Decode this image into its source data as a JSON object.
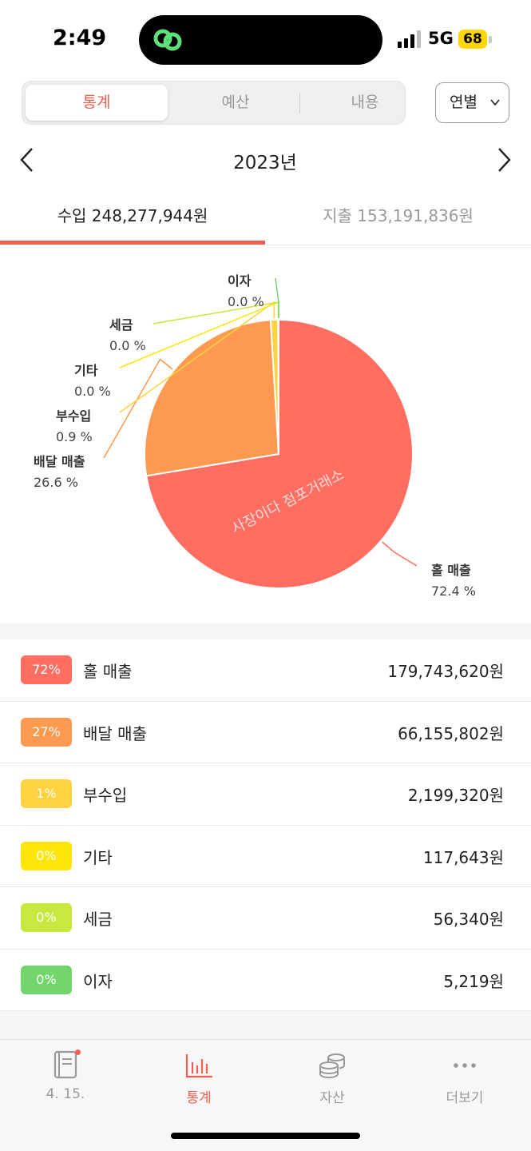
{
  "status_bar": {
    "time": "2:49",
    "network": "5G",
    "battery": "68"
  },
  "segment": {
    "tabs": [
      "통계",
      "예산",
      "내용"
    ],
    "active_index": 0,
    "dropdown_value": "연별"
  },
  "year_nav": {
    "label": "2023년"
  },
  "summary_tabs": {
    "income": "수입 248,277,944원",
    "expense": "지출 153,191,836원",
    "active": "income"
  },
  "colors": {
    "accent": "#f0604e",
    "hall": "#ff6e61",
    "delivery": "#fe9a4f",
    "side": "#ffd23f",
    "etc": "#ffe60a",
    "tax": "#c6e83f",
    "interest": "#72d66d"
  },
  "chart_data": {
    "type": "pie",
    "title": "",
    "slices": [
      {
        "label": "홀 매출",
        "percent_label": "72.4 %",
        "value": 179743620,
        "color": "#ff6e61"
      },
      {
        "label": "배달 매출",
        "percent_label": "26.6 %",
        "value": 66155802,
        "color": "#fe9a4f"
      },
      {
        "label": "부수입",
        "percent_label": "0.9 %",
        "value": 2199320,
        "color": "#ffd23f"
      },
      {
        "label": "기타",
        "percent_label": "0.0 %",
        "value": 117643,
        "color": "#ffe60a"
      },
      {
        "label": "세금",
        "percent_label": "0.0 %",
        "value": 56340,
        "color": "#c6e83f"
      },
      {
        "label": "이자",
        "percent_label": "0.0 %",
        "value": 5219,
        "color": "#72d66d"
      }
    ]
  },
  "watermark": "사장이다 점포거래소",
  "list": [
    {
      "badge": "72%",
      "label": "홀 매출",
      "amount": "179,743,620원",
      "color": "#ff6e61"
    },
    {
      "badge": "27%",
      "label": "배달 매출",
      "amount": "66,155,802원",
      "color": "#fe9a4f"
    },
    {
      "badge": "1%",
      "label": "부수입",
      "amount": "2,199,320원",
      "color": "#ffd23f"
    },
    {
      "badge": "0%",
      "label": "기타",
      "amount": "117,643원",
      "color": "#ffe60a"
    },
    {
      "badge": "0%",
      "label": "세금",
      "amount": "56,340원",
      "color": "#c6e83f"
    },
    {
      "badge": "0%",
      "label": "이자",
      "amount": "5,219원",
      "color": "#72d66d"
    }
  ],
  "bottom_nav": [
    {
      "label": "4. 15.",
      "icon": "book-icon",
      "has_dot": true
    },
    {
      "label": "통계",
      "icon": "bar-chart-icon",
      "active": true
    },
    {
      "label": "자산",
      "icon": "coins-icon"
    },
    {
      "label": "더보기",
      "icon": "more-icon"
    }
  ]
}
